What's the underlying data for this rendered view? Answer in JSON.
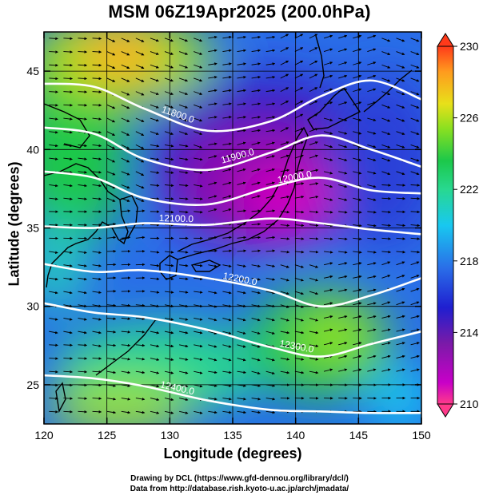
{
  "title": "MSM 06Z19Apr2025 (200.0hPa)",
  "axes": {
    "xlabel": "Longitude (degrees)",
    "ylabel": "Latitude  (degrees)",
    "xticks": [
      "120",
      "125",
      "130",
      "135",
      "140",
      "145",
      "150"
    ],
    "yticks": [
      "25",
      "30",
      "35",
      "40",
      "45"
    ],
    "xlim": [
      120,
      150
    ],
    "ylim": [
      22.5,
      47.5
    ]
  },
  "colorbar": {
    "ticks": [
      "230",
      "226",
      "222",
      "218",
      "214",
      "210"
    ],
    "range": [
      210,
      230
    ],
    "colors": [
      "#ff3a8a",
      "#c800c8",
      "#7a1aa8",
      "#1f1fd0",
      "#2a6ee8",
      "#18c8f0",
      "#28d890",
      "#1cc84a",
      "#8ae020",
      "#e8e01a",
      "#ff9a1e",
      "#ff3a1a"
    ]
  },
  "contours": [
    {
      "label": "11800.0",
      "lat": [
        44.2,
        44.0,
        42.6,
        41.2,
        41.8,
        43.4,
        44.4,
        43.2
      ],
      "lon": [
        120,
        124,
        128,
        133,
        138,
        142,
        146,
        150
      ]
    },
    {
      "label": "11900.0",
      "lat": [
        41.4,
        41.0,
        39.4,
        38.7,
        39.8,
        40.9,
        40.0,
        38.9
      ],
      "lon": [
        120,
        124,
        128,
        133,
        138,
        142,
        146,
        150
      ]
    },
    {
      "label": "12000.0",
      "lat": [
        38.6,
        38.2,
        36.9,
        36.5,
        37.6,
        38.2,
        37.4,
        37.2
      ],
      "lon": [
        120,
        124,
        128,
        133,
        138,
        142,
        146,
        150
      ]
    },
    {
      "label": "12100.0",
      "lat": [
        35.1,
        35.0,
        35.3,
        35.2,
        35.6,
        35.3,
        34.9,
        34.6
      ],
      "lon": [
        120,
        124,
        128,
        133,
        138,
        142,
        146,
        150
      ]
    },
    {
      "label": "12200.0",
      "lat": [
        32.7,
        32.2,
        32.3,
        31.8,
        31.0,
        30.0,
        30.7,
        31.8
      ],
      "lon": [
        120,
        124,
        128,
        133,
        138,
        142,
        146,
        150
      ]
    },
    {
      "label": "12300.0",
      "lat": [
        30.2,
        29.6,
        29.3,
        28.5,
        27.4,
        26.8,
        27.6,
        28.4
      ],
      "lon": [
        120,
        124,
        128,
        133,
        138,
        142,
        146,
        150
      ]
    },
    {
      "label": "12400.0",
      "lat": [
        25.6,
        25.4,
        24.9,
        24.0,
        23.4,
        23.3,
        23.2,
        23.2
      ],
      "lon": [
        120,
        124,
        128,
        133,
        138,
        142,
        146,
        150
      ]
    }
  ],
  "temperature_features": [
    {
      "name": "warm-northwest",
      "lon": 126,
      "lat": 45,
      "value": 226
    },
    {
      "name": "cold-core",
      "lon": 139,
      "lat": 36.5,
      "value": 211
    },
    {
      "name": "cold-north",
      "lon": 133,
      "lat": 39,
      "value": 212
    },
    {
      "name": "warm-southeast",
      "lon": 144,
      "lat": 28,
      "value": 223
    },
    {
      "name": "warm-south",
      "lon": 132,
      "lat": 24.5,
      "value": 222
    },
    {
      "name": "mid-west",
      "lon": 121,
      "lat": 33,
      "value": 217
    }
  ],
  "wind_barbs": "uniform westerly flow with anticyclonic curvature along contours"
}
